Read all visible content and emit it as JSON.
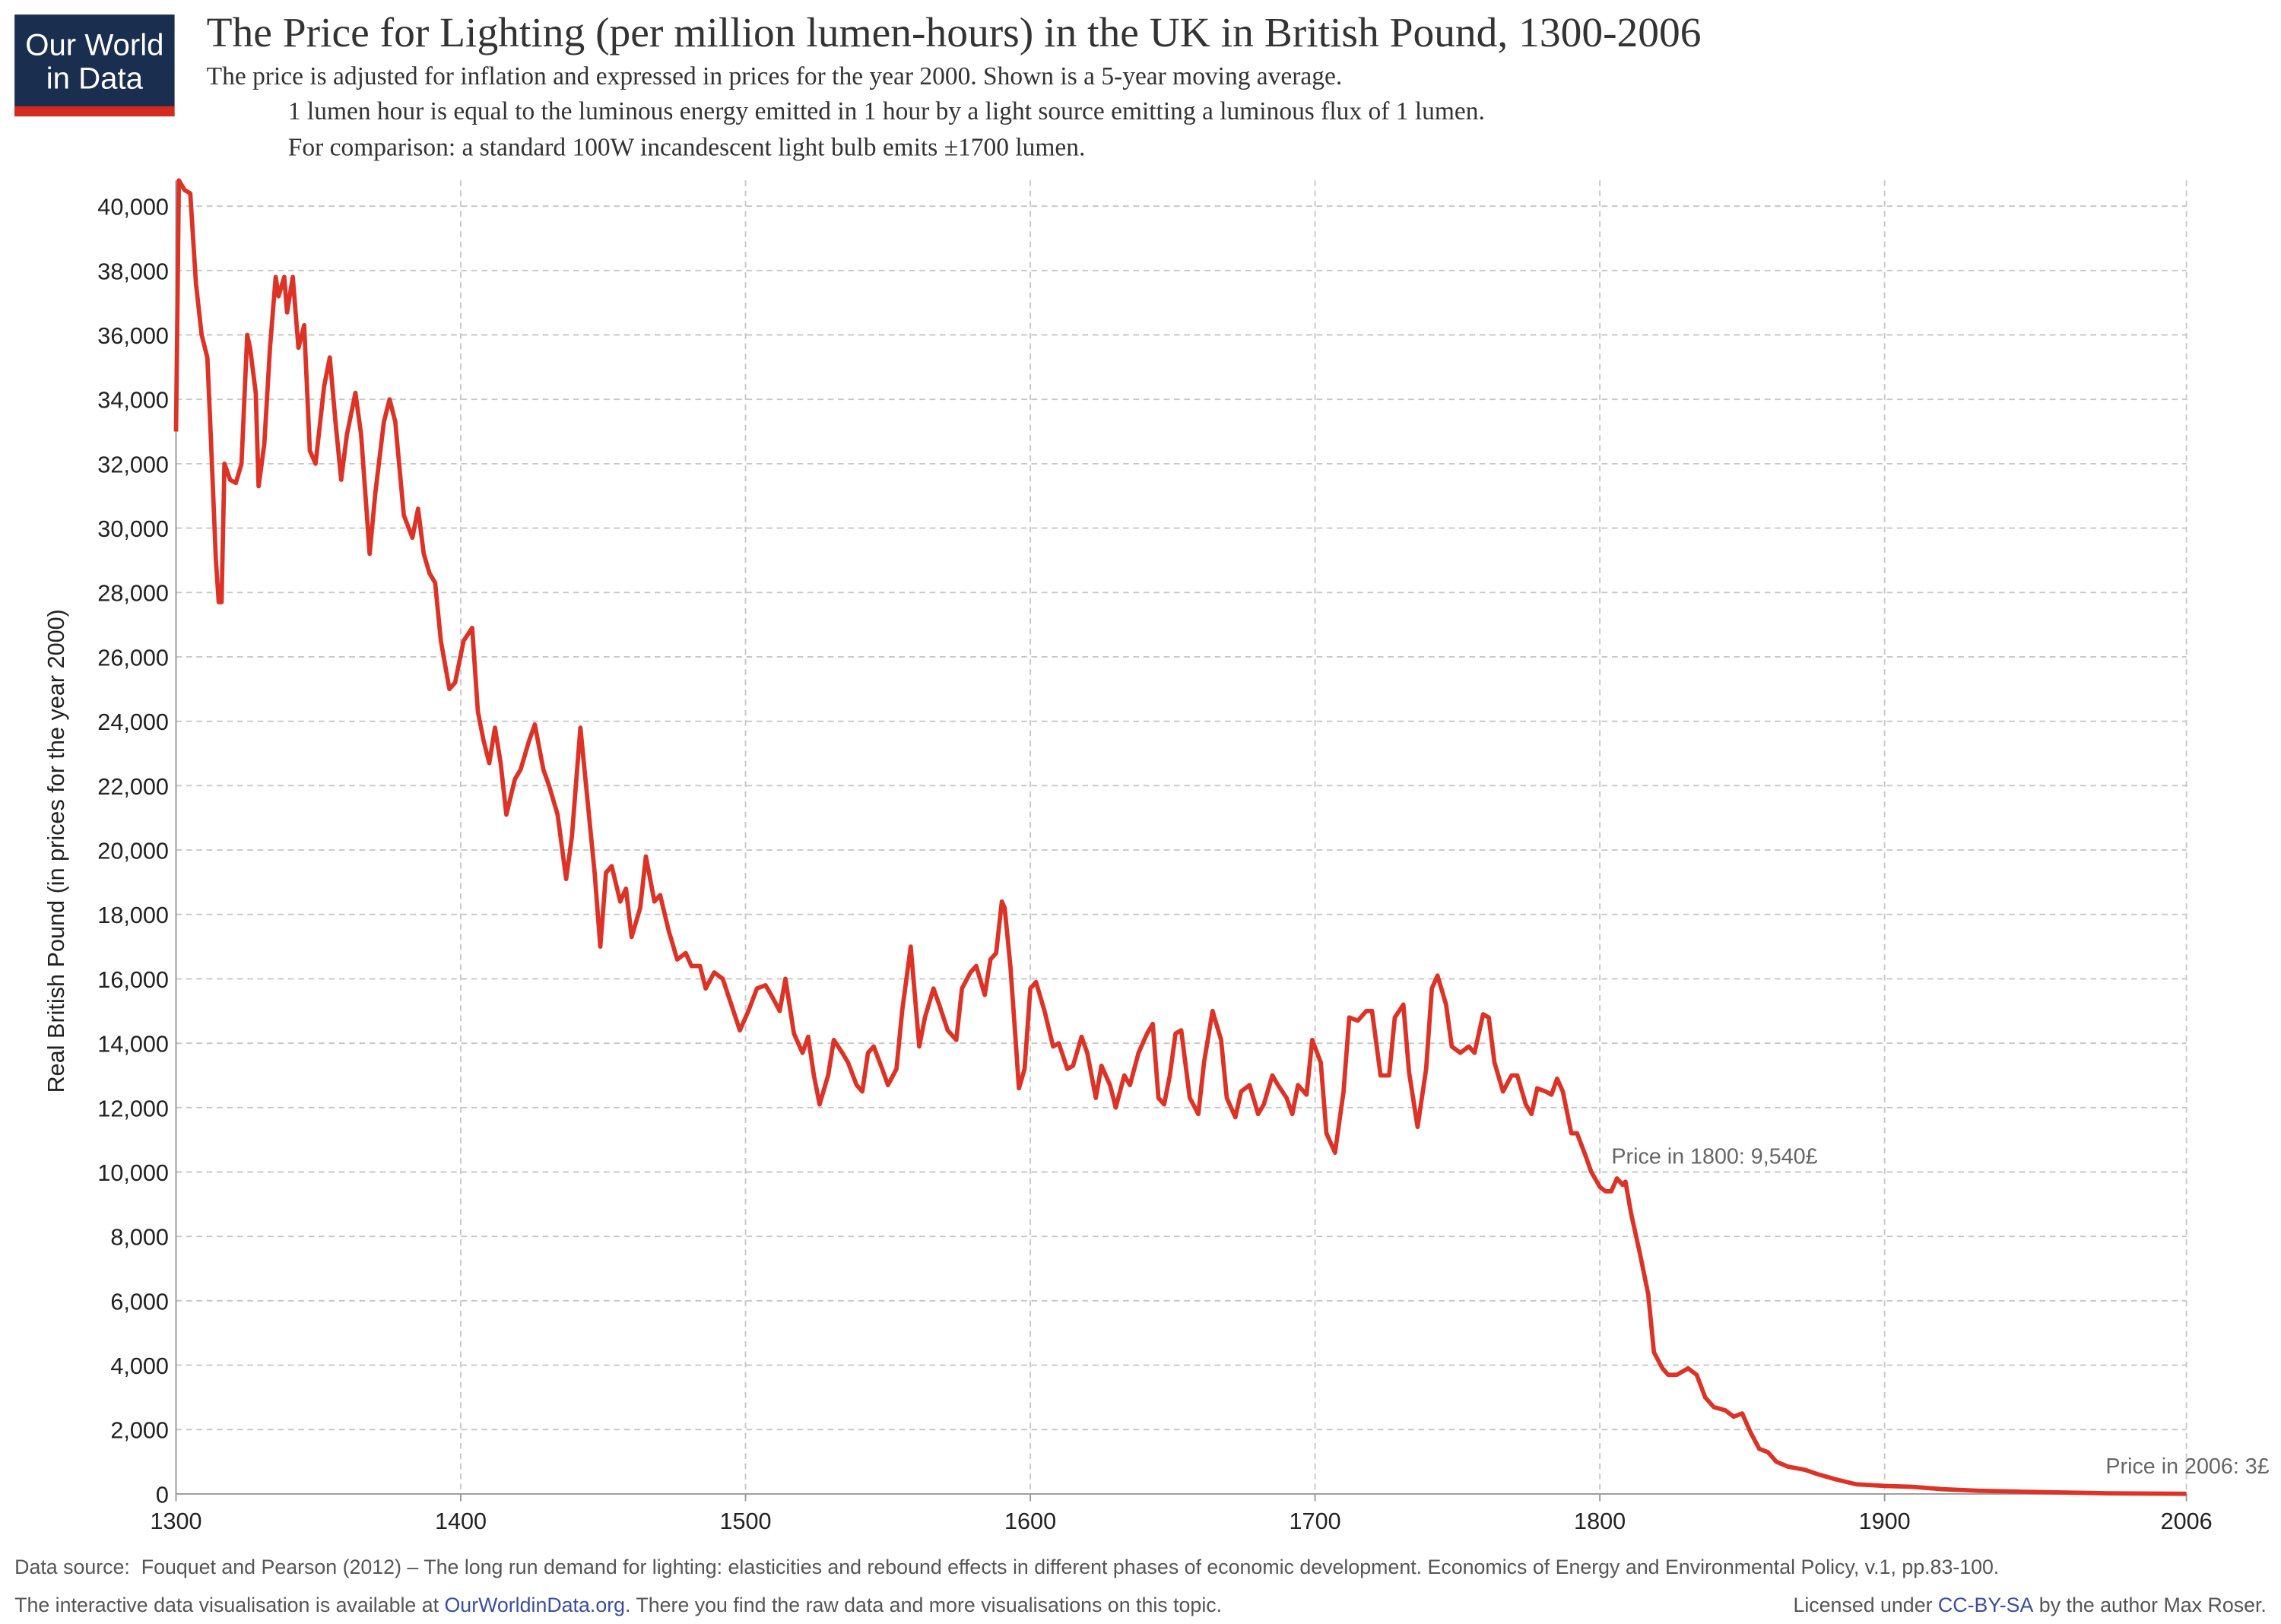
{
  "logo": {
    "line1": "Our World",
    "line2": "in Data"
  },
  "chart_data": {
    "type": "line",
    "title": "The Price for Lighting (per million lumen-hours) in the UK in British Pound, 1300-2006",
    "subtitle": [
      "The price is adjusted for inflation and expressed in prices for the year 2000. Shown is a 5-year moving average.",
      "1 lumen hour is equal to the luminous energy emitted in 1 hour by a light source emitting a luminous flux of 1 lumen.",
      "For comparison: a standard 100W incandescent light bulb emits ±1700 lumen."
    ],
    "y_label": "Real British Pound (in prices for the year 2000)",
    "color": "#dd3327",
    "grid": true,
    "xlim": [
      1300,
      2006
    ],
    "ylim": [
      0,
      40800
    ],
    "xticks": [
      1300,
      1400,
      1500,
      1600,
      1700,
      1800,
      1900,
      2006
    ],
    "yticks": [
      0,
      {
        "value": 2000,
        "label": "2,000"
      },
      {
        "value": 4000,
        "label": "4,000"
      },
      {
        "value": 6000,
        "label": "6,000"
      },
      {
        "value": 8000,
        "label": "8,000"
      },
      {
        "value": 10000,
        "label": "10,000"
      },
      {
        "value": 12000,
        "label": "12,000"
      },
      {
        "value": 14000,
        "label": "14,000"
      },
      {
        "value": 16000,
        "label": "16,000"
      },
      {
        "value": 18000,
        "label": "18,000"
      },
      {
        "value": 20000,
        "label": "20,000"
      },
      {
        "value": 22000,
        "label": "22,000"
      },
      {
        "value": 24000,
        "label": "24,000"
      },
      {
        "value": 26000,
        "label": "26,000"
      },
      {
        "value": 28000,
        "label": "28,000"
      },
      {
        "value": 30000,
        "label": "30,000"
      },
      {
        "value": 32000,
        "label": "32,000"
      },
      {
        "value": 34000,
        "label": "34,000"
      },
      {
        "value": 36000,
        "label": "36,000"
      },
      {
        "value": 38000,
        "label": "38,000"
      },
      {
        "value": 40000,
        "label": "40,000"
      }
    ],
    "x": [
      1300,
      1301,
      1303,
      1305,
      1307,
      1309,
      1311,
      1312,
      1314,
      1315,
      1316,
      1317,
      1319,
      1321,
      1323,
      1325,
      1326,
      1328,
      1329,
      1331,
      1333,
      1335,
      1336,
      1338,
      1339,
      1341,
      1343,
      1345,
      1347,
      1349,
      1352,
      1354,
      1356,
      1358,
      1360,
      1363,
      1365,
      1368,
      1370,
      1373,
      1375,
      1377,
      1380,
      1383,
      1385,
      1387,
      1389,
      1391,
      1393,
      1396,
      1398,
      1401,
      1404,
      1406,
      1408,
      1410,
      1412,
      1414,
      1416,
      1419,
      1421,
      1424,
      1426,
      1429,
      1431,
      1434,
      1437,
      1439,
      1442,
      1445,
      1447,
      1449,
      1451,
      1453,
      1456,
      1458,
      1460,
      1463,
      1465,
      1468,
      1470,
      1473,
      1476,
      1479,
      1481,
      1484,
      1486,
      1489,
      1492,
      1495,
      1498,
      1501,
      1504,
      1507,
      1509,
      1512,
      1514,
      1517,
      1520,
      1522,
      1524,
      1526,
      1529,
      1531,
      1534,
      1536,
      1539,
      1541,
      1543,
      1545,
      1548,
      1550,
      1553,
      1555,
      1558,
      1561,
      1563,
      1566,
      1568,
      1571,
      1574,
      1576,
      1579,
      1581,
      1584,
      1586,
      1588,
      1590,
      1591,
      1593,
      1595,
      1596,
      1598,
      1600,
      1602,
      1605,
      1608,
      1610,
      1613,
      1615,
      1618,
      1620,
      1623,
      1625,
      1628,
      1630,
      1633,
      1635,
      1638,
      1641,
      1643,
      1645,
      1647,
      1649,
      1651,
      1653,
      1656,
      1659,
      1661,
      1664,
      1667,
      1669,
      1672,
      1674,
      1677,
      1680,
      1682,
      1685,
      1687,
      1690,
      1692,
      1694,
      1697,
      1699,
      1702,
      1704,
      1707,
      1710,
      1712,
      1715,
      1718,
      1720,
      1723,
      1726,
      1728,
      1731,
      1733,
      1736,
      1739,
      1741,
      1743,
      1746,
      1748,
      1751,
      1754,
      1756,
      1759,
      1761,
      1763,
      1766,
      1769,
      1771,
      1774,
      1776,
      1778,
      1781,
      1783,
      1785,
      1787,
      1790,
      1792,
      1795,
      1797,
      1800,
      1802,
      1804,
      1806,
      1808,
      1809,
      1811,
      1814,
      1817,
      1819,
      1822,
      1824,
      1827,
      1831,
      1834,
      1837,
      1840,
      1844,
      1847,
      1850,
      1853,
      1856,
      1859,
      1862,
      1866,
      1872,
      1877,
      1883,
      1890,
      1900,
      1910,
      1920,
      1933,
      1953,
      1979,
      2006
    ],
    "values": [
      33000,
      40800,
      40500,
      40400,
      37600,
      36000,
      35300,
      33300,
      29000,
      27700,
      27700,
      32000,
      31500,
      31400,
      32000,
      36000,
      35600,
      34200,
      31300,
      32600,
      35600,
      37800,
      37200,
      37800,
      36700,
      37800,
      35600,
      36300,
      32400,
      32000,
      34400,
      35300,
      33300,
      31500,
      32900,
      34200,
      32900,
      29200,
      31100,
      33300,
      34000,
      33300,
      30400,
      29700,
      30600,
      29200,
      28600,
      28300,
      26500,
      25000,
      25200,
      26500,
      26900,
      24300,
      23400,
      22700,
      23800,
      22700,
      21100,
      22200,
      22500,
      23400,
      23900,
      22500,
      22000,
      21100,
      19100,
      20400,
      23800,
      21100,
      19300,
      17000,
      19300,
      19500,
      18400,
      18800,
      17300,
      18200,
      19800,
      18400,
      18600,
      17500,
      16600,
      16800,
      16400,
      16400,
      15700,
      16200,
      16000,
      15200,
      14400,
      15000,
      15700,
      15800,
      15500,
      15000,
      16000,
      14300,
      13700,
      14200,
      13000,
      12100,
      13000,
      14100,
      13700,
      13400,
      12700,
      12500,
      13700,
      13900,
      13200,
      12700,
      13200,
      15000,
      17000,
      13900,
      14800,
      15700,
      15200,
      14400,
      14100,
      15700,
      16200,
      16400,
      15500,
      16600,
      16800,
      18400,
      18200,
      16400,
      13900,
      12600,
      13200,
      15700,
      15900,
      15000,
      13900,
      14000,
      13200,
      13300,
      14200,
      13700,
      12300,
      13300,
      12700,
      12000,
      13000,
      12700,
      13700,
      14300,
      14600,
      12300,
      12100,
      13000,
      14300,
      14400,
      12300,
      11800,
      13400,
      15000,
      14100,
      12300,
      11700,
      12500,
      12700,
      11800,
      12100,
      13000,
      12700,
      12300,
      11800,
      12700,
      12400,
      14100,
      13400,
      11200,
      10600,
      12500,
      14800,
      14700,
      15000,
      15000,
      13000,
      13000,
      14800,
      15200,
      13100,
      11400,
      13200,
      15700,
      16100,
      15200,
      13900,
      13700,
      13900,
      13700,
      14900,
      14800,
      13400,
      12500,
      13000,
      13000,
      12100,
      11800,
      12600,
      12500,
      12400,
      12900,
      12500,
      11200,
      11200,
      10500,
      10000,
      9540,
      9400,
      9400,
      9800,
      9600,
      9700,
      8700,
      7500,
      6200,
      4400,
      3900,
      3700,
      3700,
      3900,
      3700,
      3000,
      2700,
      2600,
      2400,
      2500,
      1900,
      1400,
      1300,
      1000,
      850,
      750,
      600,
      450,
      300,
      250,
      220,
      150,
      100,
      60,
      20,
      3
    ],
    "annotations": [
      {
        "text": "Price in 1800: 9,540£",
        "x": 1800,
        "y": 9540
      },
      {
        "text": "Price in 2006: 3£",
        "x": 2006,
        "y": 3
      }
    ]
  },
  "footer": {
    "source": "Data source:  Fouquet and Pearson (2012) – The long run demand for lighting: elasticities and rebound effects in different phases of economic development. Economics of Energy and Environmental Policy, v.1, pp.83-100.",
    "line2_start": "The interactive data visualisation is available at ",
    "line2_link": "OurWorldinData.org",
    "line2_end": ". There you find the raw data and more visualisations on this topic.",
    "license_start": "Licensed under ",
    "license_link": "CC-BY-SA",
    "license_end": " by the author Max Roser."
  }
}
